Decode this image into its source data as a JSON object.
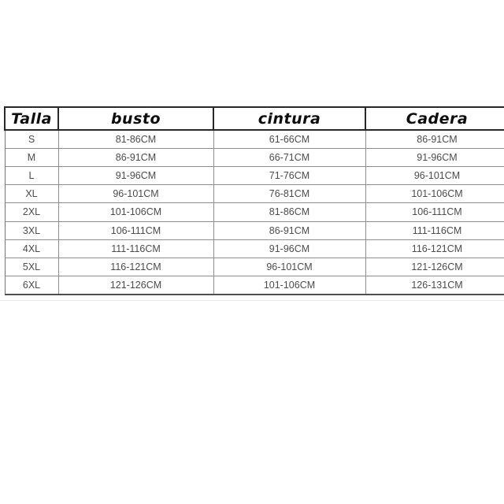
{
  "chart_data": {
    "type": "table",
    "title": "",
    "columns": [
      "Talla",
      "busto",
      "cintura",
      "Cadera"
    ],
    "rows": [
      [
        "S",
        "81-86CM",
        "61-66CM",
        "86-91CM"
      ],
      [
        "M",
        "86-91CM",
        "66-71CM",
        "91-96CM"
      ],
      [
        "L",
        "91-96CM",
        "71-76CM",
        "96-101CM"
      ],
      [
        "XL",
        "96-101CM",
        "76-81CM",
        "101-106CM"
      ],
      [
        "2XL",
        "101-106CM",
        "81-86CM",
        "106-111CM"
      ],
      [
        "3XL",
        "106-111CM",
        "86-91CM",
        "111-116CM"
      ],
      [
        "4XL",
        "111-116CM",
        "91-96CM",
        "116-121CM"
      ],
      [
        "5XL",
        "116-121CM",
        "96-101CM",
        "121-126CM"
      ],
      [
        "6XL",
        "121-126CM",
        "101-106CM",
        "126-131CM"
      ]
    ],
    "layout": {
      "grid": true,
      "header_style": "bold-italic",
      "unit": "CM"
    }
  },
  "colors": {
    "background": "#ffffff",
    "header_text": "#0d0d0d",
    "cell_text": "#4c4c4c",
    "header_border": "#282828",
    "cell_border": "#8e8e8e"
  }
}
